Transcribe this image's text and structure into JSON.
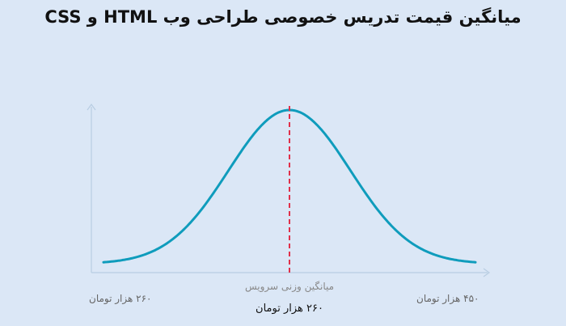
{
  "chart_data": {
    "type": "line",
    "title": "میانگین قیمت تدریس خصوصی طراحی وب HTML و CSS",
    "xlabel": "",
    "ylabel": "",
    "min_label": "۲۶۰ هزار تومان",
    "max_label": "۴۵۰ هزار تومان",
    "average_label": "میانگین وزنی سرویس",
    "average_value": "۲۶۰ هزار تومان",
    "curve": "normal",
    "grid": false,
    "colors": {
      "curve": "#0f9cbc",
      "average_line": "#e0304a",
      "axis": "#b8cde2"
    }
  }
}
